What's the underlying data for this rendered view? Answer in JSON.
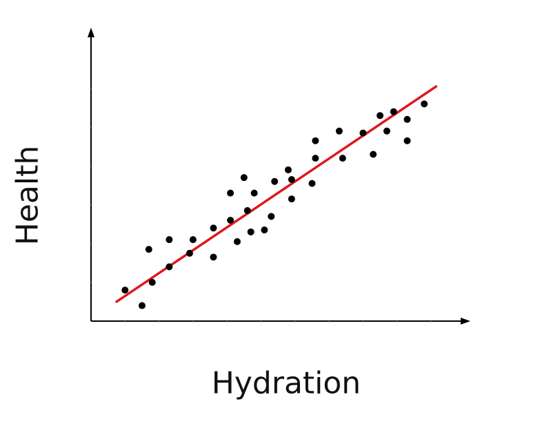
{
  "chart_data": {
    "type": "scatter",
    "title": "",
    "xlabel": "Hydration",
    "ylabel": "Health",
    "xlim": [
      0,
      10
    ],
    "ylim": [
      0,
      6
    ],
    "grid": false,
    "legend": "none",
    "tick_labels": false,
    "series": [
      {
        "kind": "points",
        "color": "#000000",
        "points": [
          [
            1.0,
            0.8
          ],
          [
            1.5,
            0.4
          ],
          [
            1.7,
            1.85
          ],
          [
            1.8,
            1.0
          ],
          [
            2.3,
            1.4
          ],
          [
            2.3,
            2.1
          ],
          [
            2.9,
            1.75
          ],
          [
            3.0,
            2.1
          ],
          [
            3.6,
            1.65
          ],
          [
            3.6,
            2.4
          ],
          [
            4.1,
            2.6
          ],
          [
            4.1,
            3.3
          ],
          [
            4.3,
            2.05
          ],
          [
            4.5,
            3.7
          ],
          [
            4.6,
            2.85
          ],
          [
            4.7,
            2.3
          ],
          [
            4.8,
            3.3
          ],
          [
            5.1,
            2.35
          ],
          [
            5.3,
            2.7
          ],
          [
            5.4,
            3.6
          ],
          [
            5.8,
            3.9
          ],
          [
            5.9,
            3.65
          ],
          [
            5.9,
            3.15
          ],
          [
            6.5,
            3.55
          ],
          [
            6.6,
            4.2
          ],
          [
            6.6,
            4.65
          ],
          [
            7.3,
            4.9
          ],
          [
            7.4,
            4.2
          ],
          [
            8.0,
            4.85
          ],
          [
            8.3,
            4.3
          ],
          [
            8.5,
            5.3
          ],
          [
            8.7,
            4.9
          ],
          [
            8.9,
            5.4
          ],
          [
            9.3,
            4.65
          ],
          [
            9.3,
            5.2
          ],
          [
            9.8,
            5.6
          ]
        ]
      },
      {
        "kind": "trendline",
        "color": "#e0161b",
        "points": [
          [
            0.75,
            0.5
          ],
          [
            10.15,
            6.05
          ]
        ]
      }
    ],
    "axis_color": "#000000"
  }
}
